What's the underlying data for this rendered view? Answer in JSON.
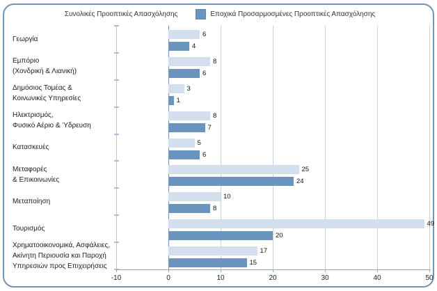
{
  "legend": {
    "series1_label": "Συνολικές Προοπτικές Απασχόλησης",
    "series2_label": "Εποχικά Προσαρμοσμένες Προοπτικές Απασχόλησης"
  },
  "colors": {
    "total_bar": "#d3dfec",
    "adjusted_bar": "#6b94bf",
    "panel_border": "#7094b5",
    "gridline": "#c3d5e3",
    "zero_line": "#7094b5",
    "axis": "#8fa8bc"
  },
  "chart_data": {
    "type": "bar",
    "orientation": "horizontal",
    "title": "",
    "xlabel": "",
    "ylabel": "",
    "xlim": [
      -10,
      50
    ],
    "x_ticks": [
      -10,
      0,
      10,
      20,
      30,
      40,
      50
    ],
    "grid": true,
    "legend_position": "top",
    "value_labels": true,
    "categories": [
      "Γεωργία",
      "Εμπόριο (Χονδρική & Λιανική)",
      "Δημόσιος Τομέας & Κοινωνικές Υπηρεσίες",
      "Ηλεκτρισμός, Φυσικό Αέριο & Ύδρευση",
      "Κατασκευές",
      "Μεταφορές & Επικοινωνίες",
      "Μεταποίηση",
      "Τουρισμός",
      "Χρηματοοικονομικά, Ασφάλειες, Ακίνητη Περιουσία και Παροχή Υπηρεσιών προς Επιχειρήσεις"
    ],
    "category_label_lines": [
      [
        "Γεωργία"
      ],
      [
        "Εμπόριο",
        "(Χονδρική & Λιανική)"
      ],
      [
        "Δημόσιος Τομέας &",
        "Κοινωνικές Υπηρεσίες"
      ],
      [
        "Ηλεκτρισμός,",
        "Φυσικό Αέριο & Ύδρευση"
      ],
      [
        "Κατασκευές"
      ],
      [
        "Μεταφορές",
        "& Επικοινωνίες"
      ],
      [
        "Μεταποίηση"
      ],
      [
        "Τουρισμός"
      ],
      [
        "Χρηματοοικονομικά, Ασφάλειες,",
        "Ακίνητη Περιουσία και Παροχή",
        "Υπηρεσιών προς Επιχειρήσεις"
      ]
    ],
    "series": [
      {
        "name": "Συνολικές Προοπτικές Απασχόλησης",
        "color": "#d3dfec",
        "values": [
          6,
          8,
          3,
          8,
          5,
          25,
          10,
          49,
          17
        ]
      },
      {
        "name": "Εποχικά Προσαρμοσμένες Προοπτικές Απασχόλησης",
        "color": "#6b94bf",
        "values": [
          4,
          6,
          1,
          7,
          6,
          24,
          8,
          20,
          15
        ]
      }
    ]
  }
}
